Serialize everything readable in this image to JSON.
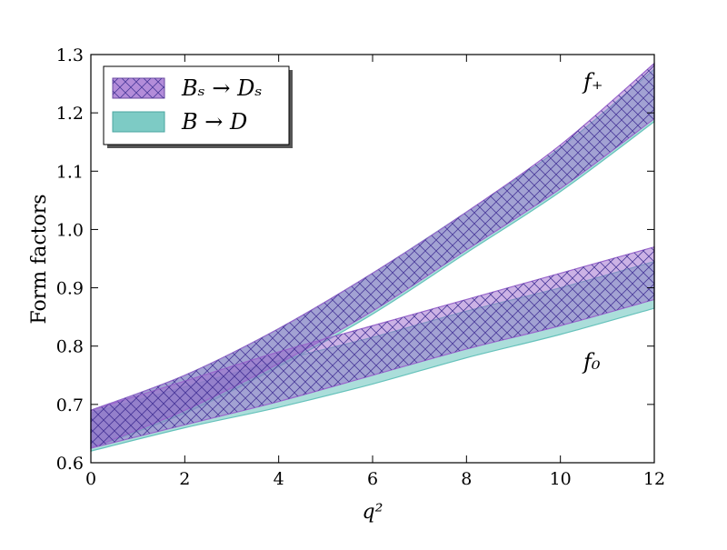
{
  "chart_data": {
    "type": "area",
    "xlabel": "q²",
    "ylabel": "Form factors",
    "xlim": [
      0,
      12
    ],
    "ylim": [
      0.6,
      1.3
    ],
    "xticks": [
      0,
      2,
      4,
      6,
      8,
      10,
      12
    ],
    "yticks": [
      0.6,
      0.7,
      0.8,
      0.9,
      1.0,
      1.1,
      1.2,
      1.3
    ],
    "xtick_labels": [
      "0",
      "2",
      "4",
      "6",
      "8",
      "10",
      "12"
    ],
    "ytick_labels": [
      "0.6",
      "0.7",
      "0.8",
      "0.9",
      "1.0",
      "1.1",
      "1.2",
      "1.3"
    ],
    "grid": false,
    "legend_position": "top-left",
    "annotations": [
      {
        "text": "f₊",
        "x": 10.5,
        "y": 1.245
      },
      {
        "text": "f₀",
        "x": 10.5,
        "y": 0.77
      }
    ],
    "series": [
      {
        "name": "Bₛ → Dₛ",
        "form_factor": "f+",
        "color": "#9966cc",
        "hatch": true,
        "x": [
          0,
          2,
          4,
          6,
          8,
          10,
          12
        ],
        "lower": [
          0.625,
          0.69,
          0.77,
          0.86,
          0.965,
          1.07,
          1.19
        ],
        "upper": [
          0.69,
          0.75,
          0.83,
          0.925,
          1.03,
          1.145,
          1.285
        ]
      },
      {
        "name": "Bₛ → Dₛ",
        "form_factor": "f0",
        "color": "#9966cc",
        "hatch": true,
        "x": [
          0,
          2,
          4,
          6,
          8,
          10,
          12
        ],
        "lower": [
          0.625,
          0.665,
          0.705,
          0.75,
          0.795,
          0.835,
          0.88
        ],
        "upper": [
          0.69,
          0.74,
          0.79,
          0.835,
          0.88,
          0.925,
          0.97
        ]
      },
      {
        "name": "B → D",
        "form_factor": "f+",
        "color": "#66c2bb",
        "hatch": false,
        "x": [
          0,
          2,
          4,
          6,
          8,
          10,
          12
        ],
        "lower": [
          0.625,
          0.685,
          0.765,
          0.855,
          0.96,
          1.065,
          1.185
        ],
        "upper": [
          0.69,
          0.75,
          0.83,
          0.925,
          1.03,
          1.14,
          1.275
        ]
      },
      {
        "name": "B → D",
        "form_factor": "f0",
        "color": "#66c2bb",
        "hatch": false,
        "x": [
          0,
          2,
          4,
          6,
          8,
          10,
          12
        ],
        "lower": [
          0.62,
          0.66,
          0.695,
          0.735,
          0.78,
          0.82,
          0.865
        ],
        "upper": [
          0.685,
          0.73,
          0.775,
          0.815,
          0.86,
          0.9,
          0.945
        ]
      }
    ],
    "legend": [
      {
        "label": "Bₛ → Dₛ",
        "color": "#9966cc",
        "hatch": true
      },
      {
        "label": "B → D",
        "color": "#66c2bb",
        "hatch": false
      }
    ]
  }
}
